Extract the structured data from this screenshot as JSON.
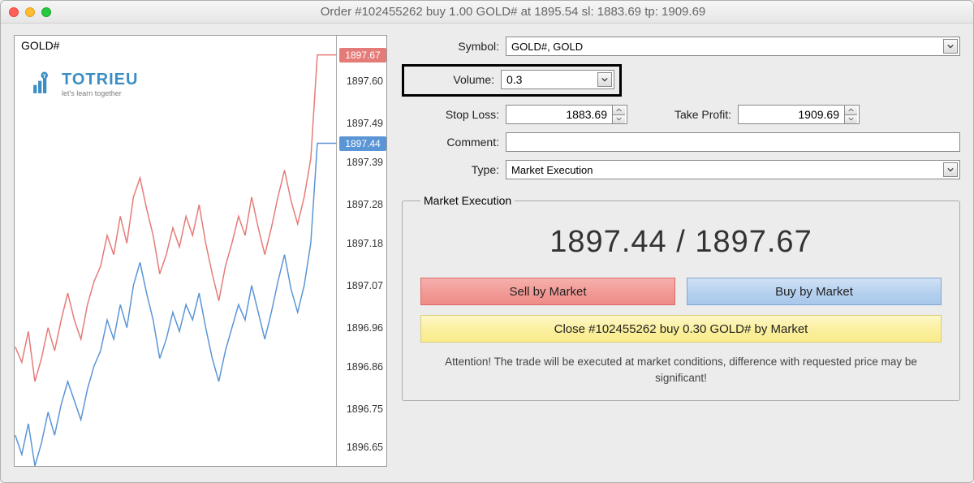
{
  "window_title": "Order #102455262 buy 1.00 GOLD# at 1895.54 sl: 1883.69 tp: 1909.69",
  "watermark": {
    "brand": "TOTRIEU",
    "tagline": "let's learn together"
  },
  "chart": {
    "symbol_label": "GOLD#",
    "type": "line",
    "ylim": [
      1896.6,
      1897.72
    ],
    "ylabels": [
      {
        "v": 1897.6,
        "t": "1897.60"
      },
      {
        "v": 1897.49,
        "t": "1897.49"
      },
      {
        "v": 1897.39,
        "t": "1897.39"
      },
      {
        "v": 1897.28,
        "t": "1897.28"
      },
      {
        "v": 1897.18,
        "t": "1897.18"
      },
      {
        "v": 1897.07,
        "t": "1897.07"
      },
      {
        "v": 1896.96,
        "t": "1896.96"
      },
      {
        "v": 1896.86,
        "t": "1896.86"
      },
      {
        "v": 1896.75,
        "t": "1896.75"
      },
      {
        "v": 1896.65,
        "t": "1896.65"
      }
    ],
    "ask_tag": {
      "v": 1897.67,
      "t": "1897.67"
    },
    "bid_tag": {
      "v": 1897.44,
      "t": "1897.44"
    },
    "colors": {
      "ask_line": "#e57b78",
      "bid_line": "#5a95d6",
      "axis": "#aaaaaa",
      "bg": "#ffffff"
    },
    "line_width": 1.5,
    "ask_series": [
      1896.91,
      1896.87,
      1896.95,
      1896.82,
      1896.88,
      1896.96,
      1896.9,
      1896.98,
      1897.05,
      1896.98,
      1896.93,
      1897.02,
      1897.08,
      1897.12,
      1897.2,
      1897.15,
      1897.25,
      1897.18,
      1897.3,
      1897.35,
      1897.27,
      1897.2,
      1897.1,
      1897.15,
      1897.22,
      1897.17,
      1897.25,
      1897.2,
      1897.28,
      1897.18,
      1897.1,
      1897.03,
      1897.12,
      1897.18,
      1897.25,
      1897.2,
      1897.3,
      1897.22,
      1897.15,
      1897.22,
      1897.3,
      1897.37,
      1897.29,
      1897.23,
      1897.3,
      1897.4,
      1897.67,
      1897.67,
      1897.67,
      1897.67
    ],
    "bid_series": [
      1896.68,
      1896.63,
      1896.71,
      1896.6,
      1896.66,
      1896.74,
      1896.68,
      1896.76,
      1896.82,
      1896.77,
      1896.72,
      1896.8,
      1896.86,
      1896.9,
      1896.98,
      1896.93,
      1897.02,
      1896.96,
      1897.07,
      1897.13,
      1897.05,
      1896.98,
      1896.88,
      1896.93,
      1897.0,
      1896.95,
      1897.02,
      1896.98,
      1897.05,
      1896.96,
      1896.88,
      1896.82,
      1896.9,
      1896.96,
      1897.02,
      1896.98,
      1897.07,
      1897.0,
      1896.93,
      1897.0,
      1897.08,
      1897.15,
      1897.06,
      1897.0,
      1897.07,
      1897.18,
      1897.44,
      1897.44,
      1897.44,
      1897.44
    ]
  },
  "form": {
    "symbol_label": "Symbol:",
    "symbol_value": "GOLD#, GOLD",
    "volume_label": "Volume:",
    "volume_value": "0.3",
    "stoploss_label": "Stop Loss:",
    "stoploss_value": "1883.69",
    "takeprofit_label": "Take Profit:",
    "takeprofit_value": "1909.69",
    "comment_label": "Comment:",
    "comment_value": "",
    "type_label": "Type:",
    "type_value": "Market Execution"
  },
  "exec": {
    "legend": "Market Execution",
    "bid": "1897.44",
    "ask": "1897.67",
    "separator": " / ",
    "sell_label": "Sell by Market",
    "buy_label": "Buy by Market",
    "close_label": "Close #102455262 buy 0.30 GOLD# by Market",
    "attention": "Attention! The trade will be executed at market conditions, difference with requested price may be significant!"
  },
  "colors": {
    "sell_btn": "#f29c98",
    "buy_btn": "#b8d2ef",
    "close_btn": "#fbf0a0"
  }
}
